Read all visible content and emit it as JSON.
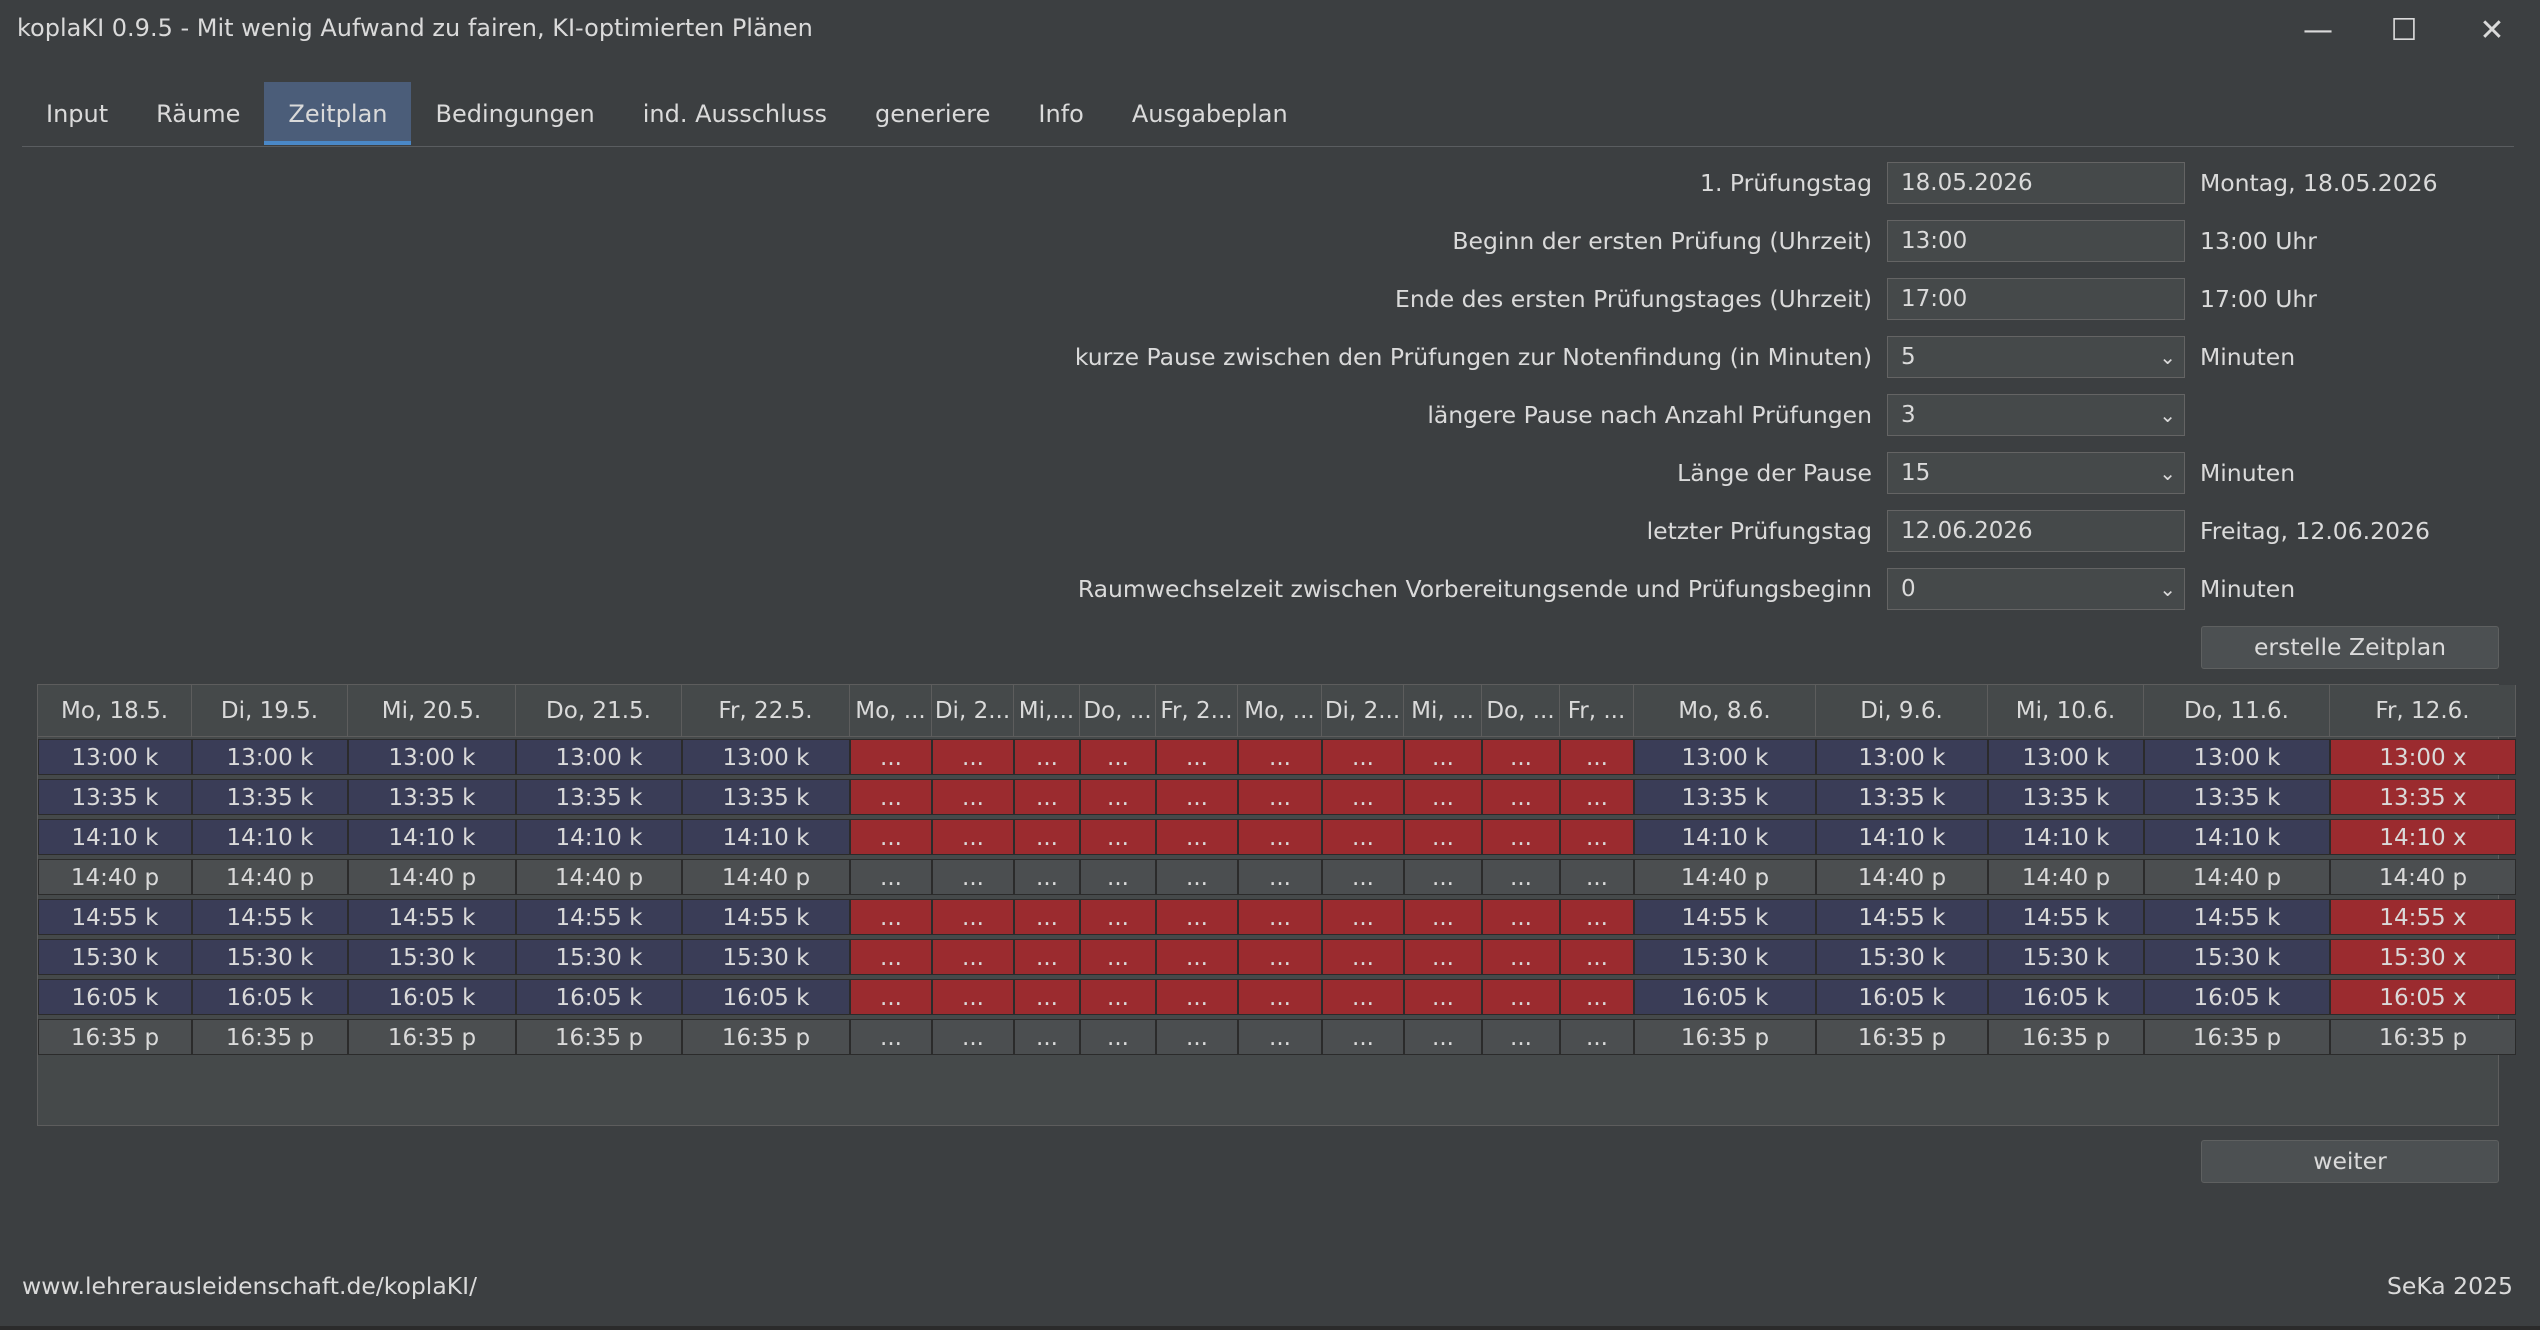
{
  "window": {
    "title": "koplaKI 0.9.5 - Mit wenig Aufwand zu fairen, KI-optimierten Plänen",
    "minimize_glyph": "—",
    "maximize_glyph": "☐",
    "close_glyph": "✕"
  },
  "tabs": [
    {
      "label": "Input",
      "active": false
    },
    {
      "label": "Räume",
      "active": false
    },
    {
      "label": "Zeitplan",
      "active": true
    },
    {
      "label": "Bedingungen",
      "active": false
    },
    {
      "label": "ind. Ausschluss",
      "active": false
    },
    {
      "label": "generiere",
      "active": false
    },
    {
      "label": "Info",
      "active": false
    },
    {
      "label": "Ausgabeplan",
      "active": false
    }
  ],
  "form": {
    "rows": [
      {
        "label": "1. Prüfungstag",
        "value": "18.05.2026",
        "type": "text",
        "after": "Montag, 18.05.2026"
      },
      {
        "label": "Beginn der ersten Prüfung (Uhrzeit)",
        "value": "13:00",
        "type": "text",
        "after": "13:00 Uhr"
      },
      {
        "label": "Ende des ersten Prüfungstages (Uhrzeit)",
        "value": "17:00",
        "type": "text",
        "after": "17:00 Uhr"
      },
      {
        "label": "kurze Pause zwischen den Prüfungen zur Notenfindung (in Minuten)",
        "value": "5",
        "type": "combo",
        "after": "Minuten"
      },
      {
        "label": "längere Pause nach Anzahl Prüfungen",
        "value": "3",
        "type": "combo",
        "after": ""
      },
      {
        "label": "Länge der Pause",
        "value": "15",
        "type": "combo",
        "after": "Minuten"
      },
      {
        "label": "letzter Prüfungstag",
        "value": "12.06.2026",
        "type": "text",
        "after": "Freitag, 12.06.2026"
      },
      {
        "label": "Raumwechselzeit zwischen Vorbereitungsende und Prüfungsbeginn",
        "value": "0",
        "type": "combo",
        "after": "Minuten"
      }
    ],
    "combo_arrow": "⌄",
    "create_button": "erstelle Zeitplan"
  },
  "schedule": {
    "columns": [
      "Mo, 18.5.",
      "Di, 19.5.",
      "Mi, 20.5.",
      "Do, 21.5.",
      "Fr, 22.5.",
      "Mo, ...",
      "Di, 2...",
      "Mi,...",
      "Do, ...",
      "Fr, 2...",
      "Mo, ...",
      "Di, 2...",
      "Mi, ...",
      "Do, ...",
      "Fr, ...",
      "Mo, 8.6.",
      "Di, 9.6.",
      "Mi, 10.6.",
      "Do, 11.6.",
      "Fr, 12.6."
    ],
    "rows": [
      [
        "13:00 k",
        "13:00 k",
        "13:00 k",
        "13:00 k",
        "13:00 k",
        "...",
        "...",
        "...",
        "...",
        "...",
        "...",
        "...",
        "...",
        "...",
        "...",
        "13:00 k",
        "13:00 k",
        "13:00 k",
        "13:00 k",
        "13:00 x"
      ],
      [
        "13:35 k",
        "13:35 k",
        "13:35 k",
        "13:35 k",
        "13:35 k",
        "...",
        "...",
        "...",
        "...",
        "...",
        "...",
        "...",
        "...",
        "...",
        "...",
        "13:35 k",
        "13:35 k",
        "13:35 k",
        "13:35 k",
        "13:35 x"
      ],
      [
        "14:10 k",
        "14:10 k",
        "14:10 k",
        "14:10 k",
        "14:10 k",
        "...",
        "...",
        "...",
        "...",
        "...",
        "...",
        "...",
        "...",
        "...",
        "...",
        "14:10 k",
        "14:10 k",
        "14:10 k",
        "14:10 k",
        "14:10 x"
      ],
      [
        "14:40 p",
        "14:40 p",
        "14:40 p",
        "14:40 p",
        "14:40 p",
        "...",
        "...",
        "...",
        "...",
        "...",
        "...",
        "...",
        "...",
        "...",
        "...",
        "14:40 p",
        "14:40 p",
        "14:40 p",
        "14:40 p",
        "14:40 p"
      ],
      [
        "14:55 k",
        "14:55 k",
        "14:55 k",
        "14:55 k",
        "14:55 k",
        "...",
        "...",
        "...",
        "...",
        "...",
        "...",
        "...",
        "...",
        "...",
        "...",
        "14:55 k",
        "14:55 k",
        "14:55 k",
        "14:55 k",
        "14:55 x"
      ],
      [
        "15:30 k",
        "15:30 k",
        "15:30 k",
        "15:30 k",
        "15:30 k",
        "...",
        "...",
        "...",
        "...",
        "...",
        "...",
        "...",
        "...",
        "...",
        "...",
        "15:30 k",
        "15:30 k",
        "15:30 k",
        "15:30 k",
        "15:30 x"
      ],
      [
        "16:05 k",
        "16:05 k",
        "16:05 k",
        "16:05 k",
        "16:05 k",
        "...",
        "...",
        "...",
        "...",
        "...",
        "...",
        "...",
        "...",
        "...",
        "...",
        "16:05 k",
        "16:05 k",
        "16:05 k",
        "16:05 k",
        "16:05 x"
      ],
      [
        "16:35 p",
        "16:35 p",
        "16:35 p",
        "16:35 p",
        "16:35 p",
        "...",
        "...",
        "...",
        "...",
        "...",
        "...",
        "...",
        "...",
        "...",
        "...",
        "16:35 p",
        "16:35 p",
        "16:35 p",
        "16:35 p",
        "16:35 p"
      ]
    ],
    "row_types": [
      "slot",
      "slot",
      "slot",
      "pause",
      "slot",
      "slot",
      "slot",
      "pause"
    ],
    "blocked_columns": [
      5,
      6,
      7,
      8,
      9,
      10,
      11,
      12,
      13,
      14
    ],
    "highlight_columns": [
      19
    ],
    "colors": {
      "slot": "#3a3d57",
      "blocked": "#9b2b2f",
      "pause": "#4b4e50"
    }
  },
  "next_button": "weiter",
  "footer": {
    "url": "www.lehrerausleidenschaft.de/koplaKI/",
    "credit": "SeKa 2025"
  }
}
